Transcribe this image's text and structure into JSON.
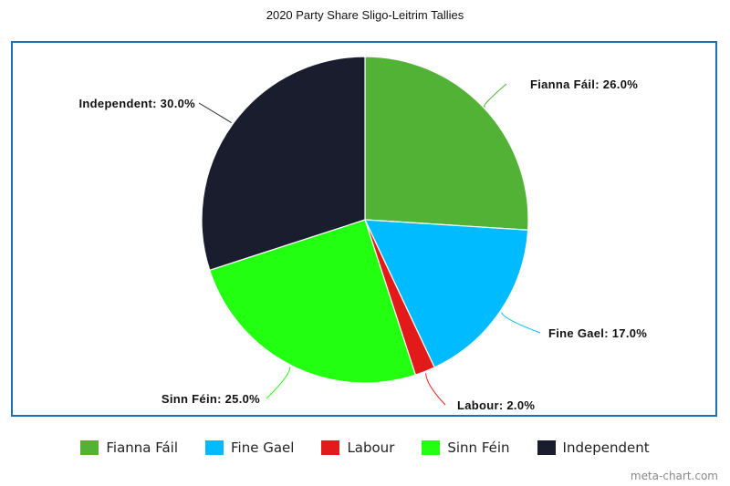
{
  "chart_data": {
    "type": "pie",
    "title": "2020 Party Share Sligo-Leitrim Tallies",
    "slices": [
      {
        "label": "Fianna Fáil",
        "value": 26.0,
        "display": "Fianna Fáil: 26.0%",
        "color": "#52b236"
      },
      {
        "label": "Fine Gael",
        "value": 17.0,
        "display": "Fine Gael: 17.0%",
        "color": "#00bbff"
      },
      {
        "label": "Labour",
        "value": 2.0,
        "display": "Labour: 2.0%",
        "color": "#e21a1a"
      },
      {
        "label": "Sinn Féin",
        "value": 25.0,
        "display": "Sinn Féin: 25.0%",
        "color": "#22ff11"
      },
      {
        "label": "Independent",
        "value": 30.0,
        "display": "Independent: 30.0%",
        "color": "#1a1d2e"
      }
    ],
    "legend_position": "bottom"
  },
  "watermark": "meta-chart.com"
}
